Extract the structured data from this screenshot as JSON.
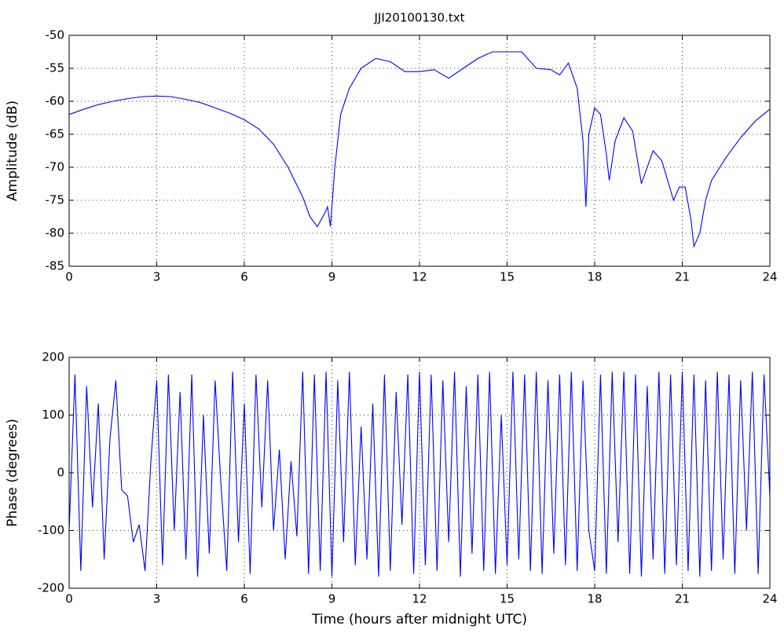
{
  "chart_data": [
    {
      "type": "line",
      "title": "JJI20100130.txt",
      "ylabel": "Amplitude (dB)",
      "xlim": [
        0,
        24
      ],
      "xticks": [
        0,
        3,
        6,
        9,
        12,
        15,
        18,
        21,
        24
      ],
      "ylim": [
        -85,
        -50
      ],
      "yticks": [
        -85,
        -80,
        -75,
        -70,
        -65,
        -60,
        -55,
        -50
      ],
      "grid": true,
      "x": [
        0,
        0.5,
        1,
        1.5,
        2,
        2.5,
        3,
        3.5,
        4,
        4.5,
        5,
        5.5,
        6,
        6.5,
        7,
        7.5,
        8,
        8.25,
        8.5,
        8.75,
        8.85,
        8.95,
        9.1,
        9.3,
        9.6,
        10,
        10.5,
        11,
        11.5,
        12,
        12.5,
        13,
        13.5,
        14,
        14.5,
        15,
        15.5,
        16,
        16.5,
        16.8,
        17.1,
        17.4,
        17.6,
        17.7,
        17.8,
        18,
        18.2,
        18.4,
        18.5,
        18.7,
        19,
        19.3,
        19.6,
        19.8,
        20,
        20.3,
        20.7,
        20.9,
        21.1,
        21.3,
        21.4,
        21.6,
        21.8,
        22,
        22.5,
        23,
        23.5,
        24
      ],
      "series": [
        {
          "color": "#0000ff",
          "values": [
            -62,
            -61.2,
            -60.5,
            -60,
            -59.6,
            -59.3,
            -59.2,
            -59.3,
            -59.7,
            -60.2,
            -61,
            -61.8,
            -62.8,
            -64.2,
            -66.5,
            -70,
            -74.5,
            -77.5,
            -79,
            -77,
            -76,
            -79,
            -70,
            -62,
            -58,
            -55,
            -53.5,
            -54,
            -55.5,
            -55.5,
            -55.2,
            -56.5,
            -55,
            -53.5,
            -52.5,
            -52.5,
            -52.5,
            -55,
            -55.2,
            -56,
            -54.2,
            -58,
            -66,
            -76,
            -65,
            -61,
            -62,
            -68,
            -72,
            -66,
            -62.5,
            -64.5,
            -72.5,
            -70,
            -67.5,
            -69,
            -75,
            -73,
            -73,
            -78,
            -82,
            -80,
            -75,
            -72,
            -68.5,
            -65.5,
            -63,
            -61.2
          ]
        }
      ]
    },
    {
      "type": "line",
      "ylabel": "Phase (degrees)",
      "xlabel": "Time (hours after midnight UTC)",
      "xlim": [
        0,
        24
      ],
      "xticks": [
        0,
        3,
        6,
        9,
        12,
        15,
        18,
        21,
        24
      ],
      "ylim": [
        -200,
        200
      ],
      "yticks": [
        -200,
        -100,
        0,
        100,
        200
      ],
      "grid": true,
      "x": [
        0,
        0.2,
        0.4,
        0.6,
        0.8,
        1,
        1.2,
        1.4,
        1.6,
        1.8,
        2,
        2.2,
        2.4,
        2.6,
        2.8,
        3,
        3.2,
        3.4,
        3.6,
        3.8,
        4,
        4.2,
        4.4,
        4.6,
        4.8,
        5,
        5.2,
        5.4,
        5.6,
        5.8,
        6,
        6.2,
        6.4,
        6.6,
        6.8,
        7,
        7.2,
        7.4,
        7.6,
        7.8,
        8,
        8.2,
        8.4,
        8.6,
        8.8,
        9,
        9.2,
        9.4,
        9.6,
        9.8,
        10,
        10.2,
        10.4,
        10.6,
        10.8,
        11,
        11.2,
        11.4,
        11.6,
        11.8,
        12,
        12.2,
        12.4,
        12.6,
        12.8,
        13,
        13.2,
        13.4,
        13.6,
        13.8,
        14,
        14.2,
        14.4,
        14.6,
        14.8,
        15,
        15.2,
        15.4,
        15.6,
        15.8,
        16,
        16.2,
        16.4,
        16.6,
        16.8,
        17,
        17.2,
        17.4,
        17.6,
        17.8,
        18,
        18.2,
        18.4,
        18.6,
        18.8,
        19,
        19.2,
        19.4,
        19.6,
        19.8,
        20,
        20.2,
        20.4,
        20.6,
        20.8,
        21,
        21.2,
        21.4,
        21.6,
        21.8,
        22,
        22.2,
        22.4,
        22.6,
        22.8,
        23,
        23.2,
        23.4,
        23.6,
        23.8,
        24
      ],
      "series": [
        {
          "color": "#0000ff",
          "values": [
            -100,
            170,
            -170,
            150,
            -60,
            120,
            -150,
            60,
            160,
            -30,
            -40,
            -120,
            -90,
            -170,
            20,
            160,
            -160,
            170,
            -100,
            140,
            -150,
            170,
            -180,
            100,
            -140,
            160,
            -20,
            -170,
            175,
            -120,
            120,
            -175,
            170,
            -60,
            160,
            -100,
            40,
            -150,
            20,
            -110,
            175,
            -175,
            170,
            -170,
            175,
            -180,
            160,
            -120,
            175,
            -160,
            80,
            -150,
            120,
            -180,
            170,
            -170,
            140,
            -90,
            170,
            -175,
            175,
            -160,
            170,
            -170,
            160,
            -120,
            175,
            -180,
            150,
            -140,
            170,
            -170,
            175,
            -175,
            100,
            -160,
            175,
            -150,
            170,
            -170,
            175,
            -175,
            160,
            -140,
            170,
            -160,
            175,
            -170,
            160,
            -100,
            -170,
            170,
            -175,
            175,
            -120,
            175,
            -175,
            170,
            -180,
            150,
            -150,
            175,
            -175,
            170,
            -160,
            175,
            -170,
            170,
            -180,
            160,
            -170,
            175,
            -150,
            170,
            -175,
            160,
            -100,
            175,
            -175,
            170,
            -40
          ]
        }
      ]
    }
  ]
}
